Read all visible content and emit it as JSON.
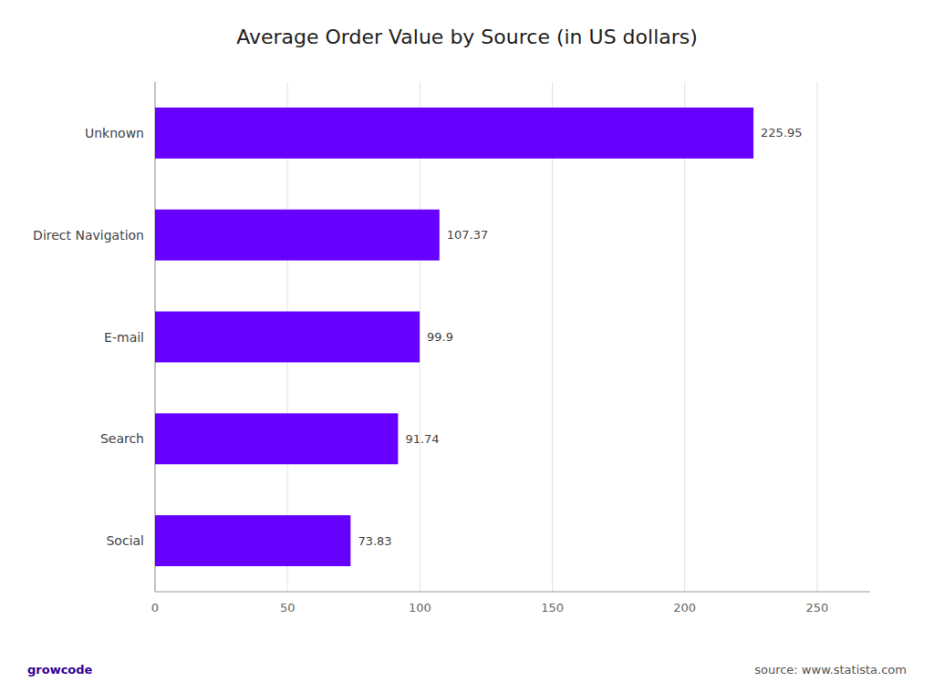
{
  "chart_data": {
    "type": "bar",
    "orientation": "horizontal",
    "title": "Average Order Value by Source (in US dollars)",
    "categories": [
      "Unknown",
      "Direct Navigation",
      "E-mail",
      "Search",
      "Social"
    ],
    "values": [
      225.95,
      107.37,
      99.9,
      91.74,
      73.83
    ],
    "color": "#6600ff",
    "xlim": [
      0,
      270
    ],
    "xticks": [
      0,
      50,
      100,
      150,
      200,
      250
    ],
    "grid": true,
    "data_labels": true,
    "annotations": [
      "source: www.statista.com",
      "growcode"
    ]
  }
}
